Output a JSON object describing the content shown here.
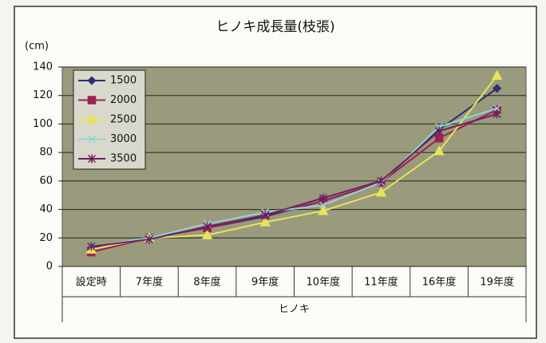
{
  "chart_data": {
    "type": "line",
    "title": "ヒノキ成長量(枝張)",
    "y_label": "(cm)",
    "x_label": "ヒノキ",
    "categories": [
      "設定時",
      "7年度",
      "8年度",
      "9年度",
      "10年度",
      "11年度",
      "16年度",
      "19年度"
    ],
    "series": [
      {
        "name": "1500",
        "color": "#2b2f6b",
        "marker": "diamond",
        "values": [
          13,
          20,
          27,
          35,
          46,
          59,
          96,
          125
        ]
      },
      {
        "name": "2000",
        "color": "#a02050",
        "marker": "square",
        "values": [
          10,
          20,
          27,
          36,
          46,
          59,
          90,
          110
        ]
      },
      {
        "name": "2500",
        "color": "#e6e45a",
        "marker": "triangle",
        "values": [
          12,
          20,
          22,
          31,
          39,
          52,
          81,
          134
        ]
      },
      {
        "name": "3000",
        "color": "#93d2d4",
        "marker": "x",
        "values": [
          14,
          20,
          30,
          38,
          43,
          59,
          98,
          111
        ]
      },
      {
        "name": "3500",
        "color": "#6b2060",
        "marker": "star",
        "values": [
          14,
          19,
          28,
          36,
          48,
          60,
          95,
          107
        ]
      }
    ],
    "ylim": [
      0,
      140
    ],
    "yticks": [
      0,
      20,
      40,
      60,
      80,
      100,
      120,
      140
    ],
    "grid": true,
    "legend": "upper-left"
  }
}
